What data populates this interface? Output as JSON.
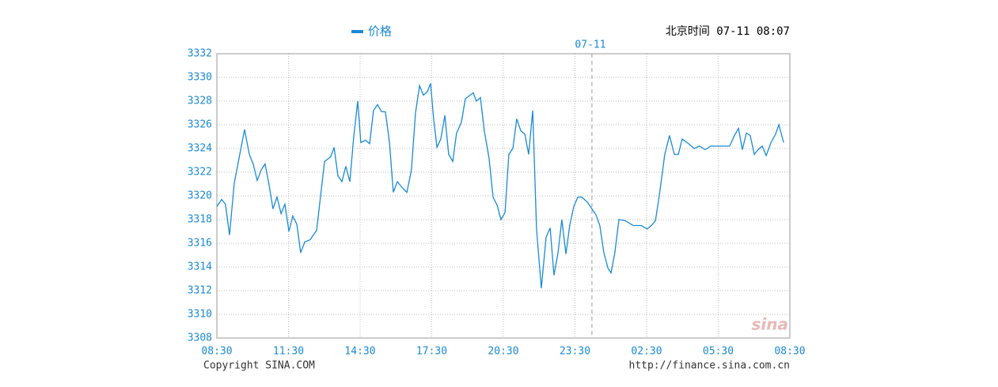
{
  "chart_data": {
    "type": "line",
    "header": "北京时间 07-11 08:07",
    "date_marker": {
      "value": 15.71,
      "label": "07-11"
    },
    "footer_left": "Copyright  SINA.COM",
    "footer_right": "http://finance.sina.com.cn",
    "watermark": "sina",
    "x": [
      0,
      0.2,
      0.36,
      0.53,
      0.73,
      0.96,
      1.16,
      1.36,
      1.52,
      1.69,
      1.86,
      2.02,
      2.19,
      2.35,
      2.52,
      2.69,
      2.85,
      3.02,
      3.18,
      3.35,
      3.51,
      3.68,
      3.91,
      4.18,
      4.51,
      4.77,
      4.91,
      5.07,
      5.24,
      5.4,
      5.57,
      5.73,
      5.9,
      6.03,
      6.23,
      6.4,
      6.56,
      6.73,
      6.9,
      7.06,
      7.23,
      7.39,
      7.56,
      7.76,
      7.96,
      8.15,
      8.32,
      8.49,
      8.65,
      8.82,
      8.95,
      9.08,
      9.22,
      9.38,
      9.55,
      9.71,
      9.88,
      10.04,
      10.24,
      10.41,
      10.61,
      10.74,
      10.87,
      11.04,
      11.2,
      11.4,
      11.57,
      11.74,
      11.9,
      12.07,
      12.23,
      12.4,
      12.56,
      12.73,
      12.9,
      13.06,
      13.23,
      13.39,
      13.59,
      13.79,
      13.96,
      14.12,
      14.29,
      14.45,
      14.62,
      14.78,
      14.95,
      15.12,
      15.28,
      15.51,
      15.71,
      15.88,
      16.04,
      16.21,
      16.38,
      16.51,
      16.67,
      16.84,
      17.11,
      17.44,
      17.77,
      18.03,
      18.2,
      18.37,
      18.53,
      18.76,
      18.96,
      19.16,
      19.33,
      19.49,
      19.76,
      19.99,
      20.22,
      20.45,
      20.69,
      21.08,
      21.48,
      21.68,
      21.85,
      22.01,
      22.18,
      22.34,
      22.51,
      22.67,
      22.84,
      23.01,
      23.21,
      23.4,
      23.54,
      23.74
    ],
    "series": [
      {
        "name": "价格",
        "color": "#1a8ad4",
        "values": [
          3319.1,
          3319.7,
          3319.3,
          3316.7,
          3321.1,
          3323.5,
          3325.6,
          3323.5,
          3322.7,
          3321.3,
          3322.2,
          3322.7,
          3320.9,
          3318.9,
          3319.9,
          3318.5,
          3319.3,
          3317.0,
          3318.3,
          3317.6,
          3315.2,
          3316.1,
          3316.3,
          3317.1,
          3322.9,
          3323.3,
          3324.1,
          3321.7,
          3321.2,
          3322.5,
          3321.2,
          3324.9,
          3328.0,
          3324.5,
          3324.7,
          3324.4,
          3327.2,
          3327.7,
          3327.1,
          3327.1,
          3324.5,
          3320.3,
          3321.2,
          3320.7,
          3320.3,
          3322.2,
          3327.0,
          3329.3,
          3328.5,
          3328.8,
          3329.5,
          3326.5,
          3324.1,
          3324.8,
          3326.8,
          3323.5,
          3322.9,
          3325.3,
          3326.2,
          3328.2,
          3328.5,
          3328.7,
          3328.0,
          3328.3,
          3325.5,
          3323.2,
          3319.9,
          3319.2,
          3318.0,
          3318.6,
          3323.5,
          3324.0,
          3326.5,
          3325.5,
          3325.2,
          3323.5,
          3327.2,
          3317.2,
          3312.2,
          3316.5,
          3317.3,
          3313.3,
          3315.2,
          3318.0,
          3315.1,
          3317.5,
          3319.1,
          3319.9,
          3319.9,
          3319.5,
          3318.9,
          3318.4,
          3317.5,
          3315.2,
          3313.9,
          3313.5,
          3315.2,
          3318.0,
          3317.9,
          3317.5,
          3317.5,
          3317.2,
          3317.5,
          3317.9,
          3320.0,
          3323.5,
          3325.1,
          3323.5,
          3323.5,
          3324.8,
          3324.4,
          3324.0,
          3324.2,
          3323.9,
          3324.2,
          3324.2,
          3324.2,
          3325.1,
          3325.7,
          3323.9,
          3325.3,
          3325.1,
          3323.5,
          3323.9,
          3324.2,
          3323.4,
          3324.5,
          3325.2,
          3326.0,
          3324.5
        ]
      }
    ],
    "xlim": [
      0,
      24
    ],
    "xticks": [
      {
        "value": 0,
        "label": "08:30"
      },
      {
        "value": 3,
        "label": "11:30"
      },
      {
        "value": 6,
        "label": "14:30"
      },
      {
        "value": 9,
        "label": "17:30"
      },
      {
        "value": 12,
        "label": "20:30"
      },
      {
        "value": 15,
        "label": "23:30"
      },
      {
        "value": 18,
        "label": "02:30"
      },
      {
        "value": 21,
        "label": "05:30"
      },
      {
        "value": 24,
        "label": "08:30"
      }
    ],
    "ylim": [
      3308,
      3332
    ],
    "yticks": [
      3308,
      3310,
      3312,
      3314,
      3316,
      3318,
      3320,
      3322,
      3324,
      3326,
      3328,
      3330,
      3332
    ],
    "grid": true
  }
}
